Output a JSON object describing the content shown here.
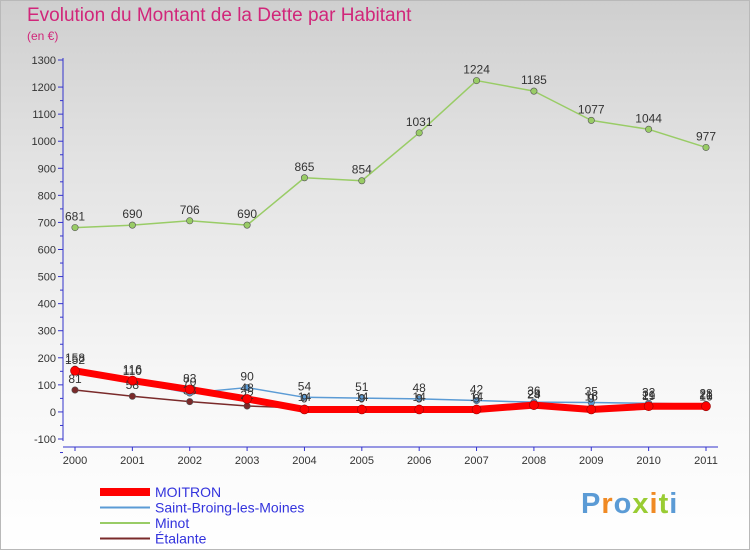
{
  "chart_data": {
    "type": "line",
    "title": "Evolution du Montant de la Dette par Habitant",
    "subtitle": "(en €)",
    "x": [
      "2000",
      "2001",
      "2002",
      "2003",
      "2004",
      "2005",
      "2006",
      "2007",
      "2008",
      "2009",
      "2010",
      "2011"
    ],
    "ylim": [
      -100,
      1300
    ],
    "yticks": [
      -100,
      0,
      100,
      200,
      300,
      400,
      500,
      600,
      700,
      800,
      900,
      1000,
      1100,
      1200,
      1300
    ],
    "grid": false,
    "legend_position": "bottom-left",
    "series": [
      {
        "name": "MOITRON",
        "color": "#ff0000",
        "values": [
          152,
          116,
          83,
          48,
          9,
          9,
          9,
          9,
          25,
          9,
          21,
          21
        ]
      },
      {
        "name": "Saint-Broing-les-Moines",
        "color": "#5b9bd5",
        "values": [
          158,
          110,
          70,
          90,
          54,
          51,
          48,
          42,
          36,
          35,
          32,
          28
        ]
      },
      {
        "name": "Minot",
        "color": "#99cc66",
        "values": [
          681,
          690,
          706,
          690,
          865,
          854,
          1031,
          1224,
          1185,
          1077,
          1044,
          977
        ]
      },
      {
        "name": "Étalante",
        "color": "#7a2a2a",
        "values": [
          81,
          58,
          38,
          22,
          14,
          14,
          14,
          14,
          24,
          16,
          19,
          16
        ]
      }
    ]
  },
  "logo": {
    "text": "Proxiti",
    "colors": [
      "#5b9bd5",
      "#f08a24",
      "#5b9bd5",
      "#99cc33",
      "#f08a24",
      "#99cc33",
      "#5b9bd5"
    ]
  }
}
